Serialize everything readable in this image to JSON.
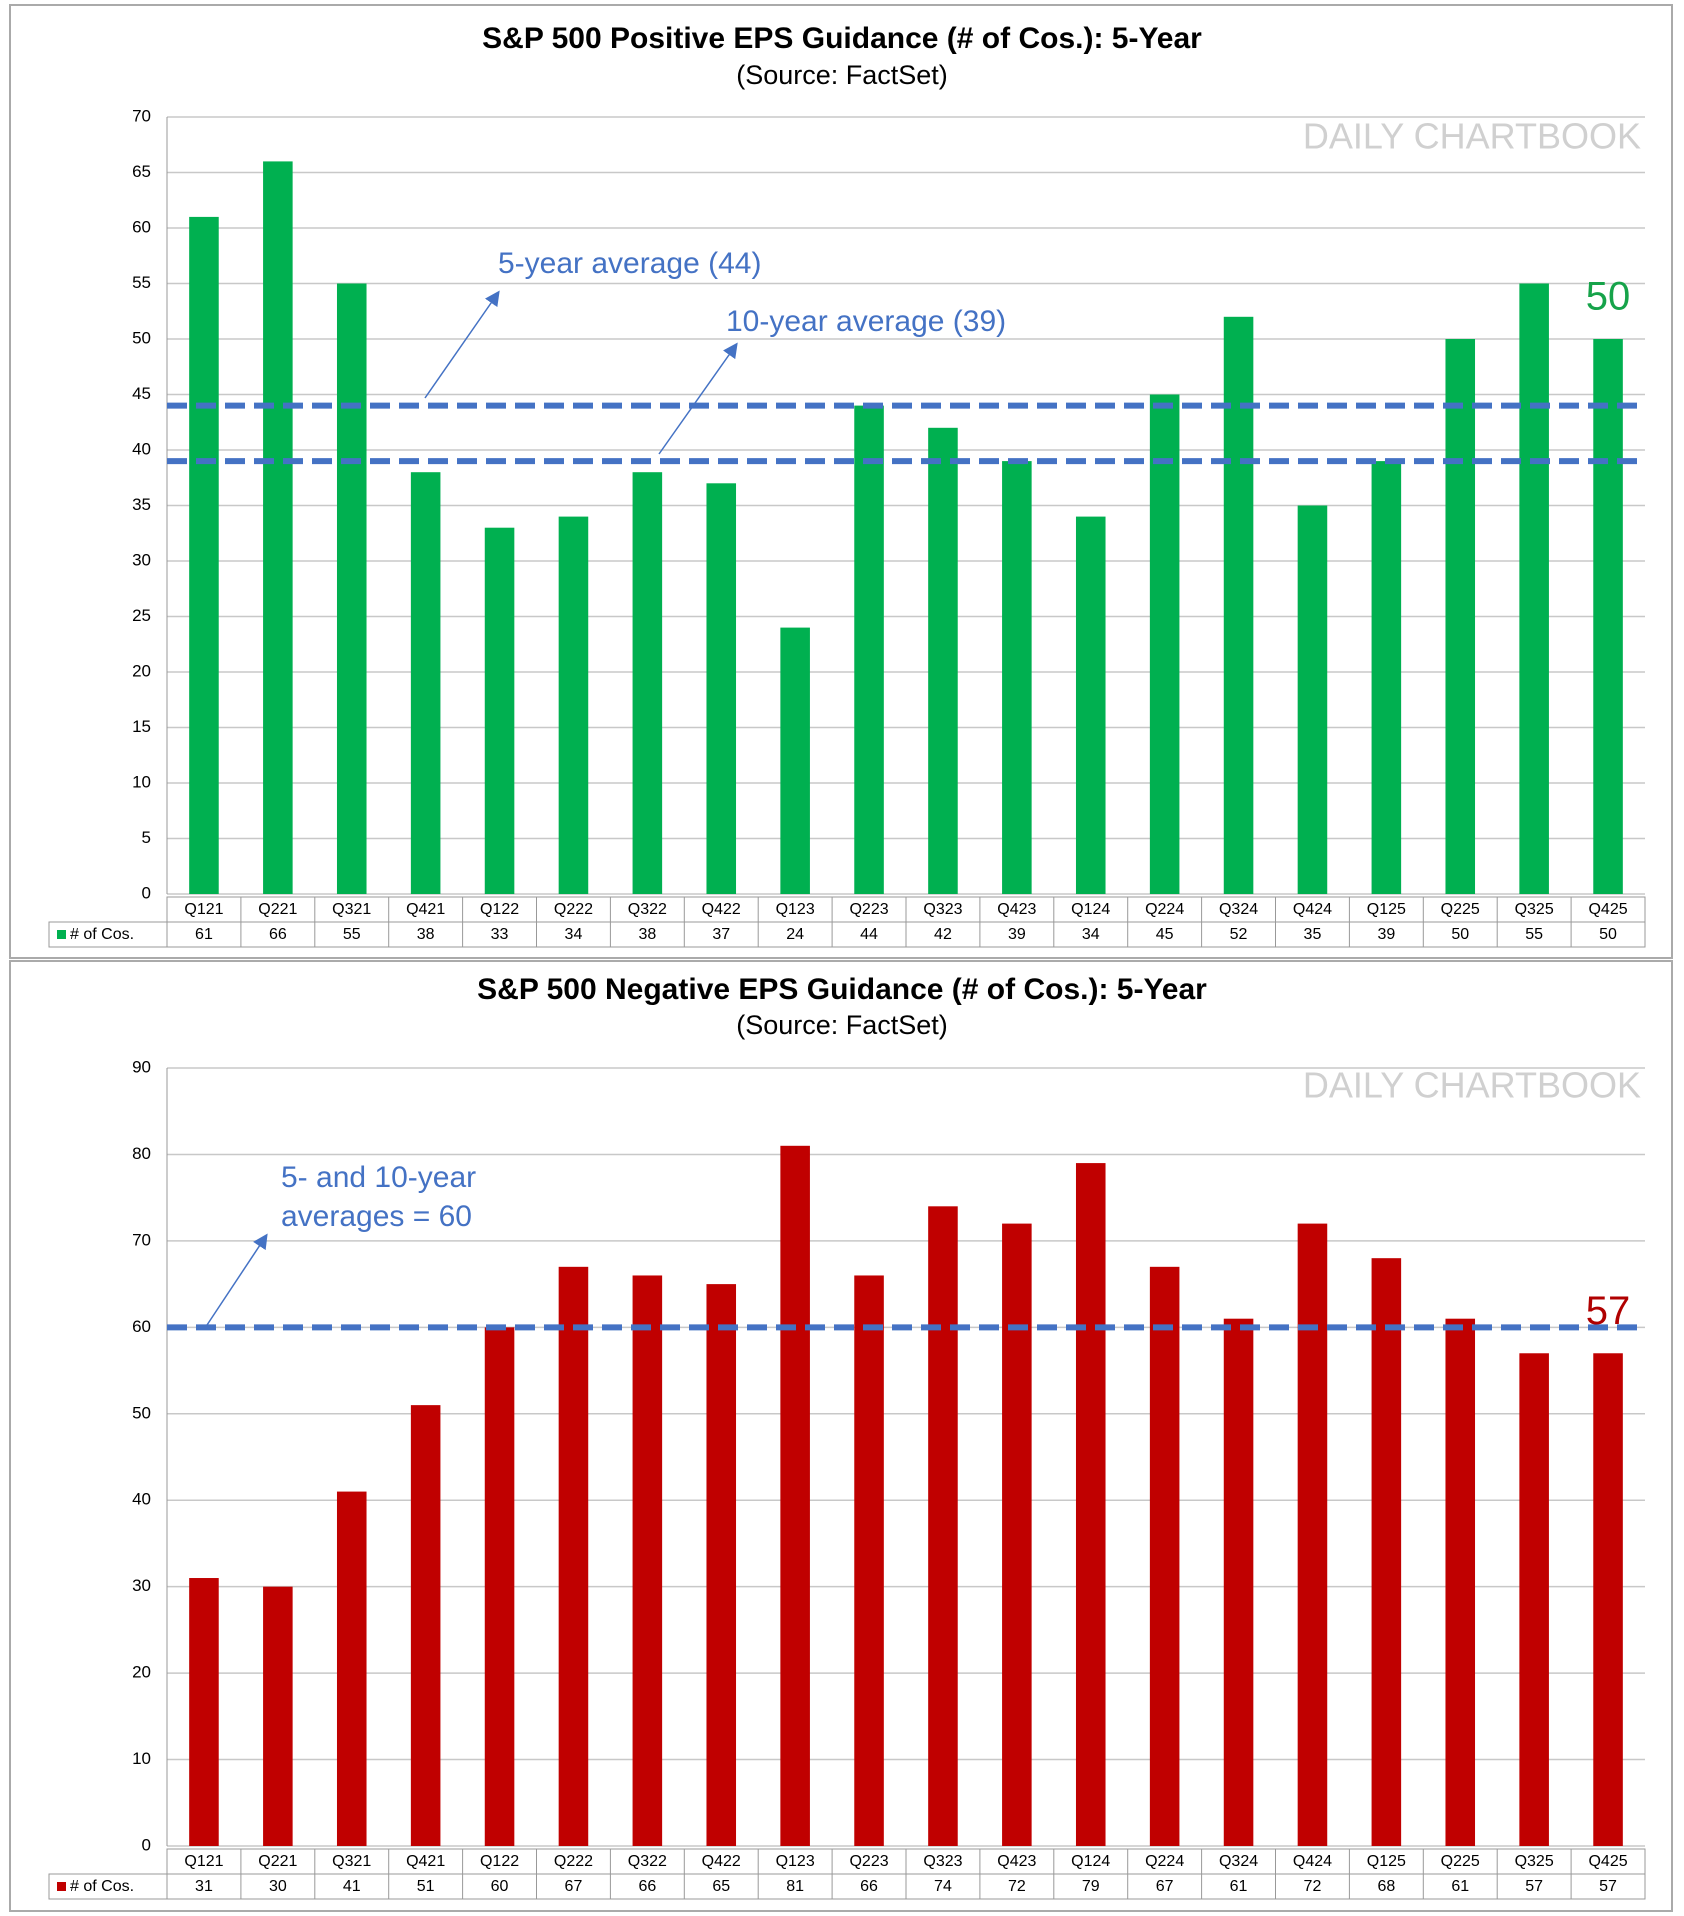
{
  "chart_data": [
    {
      "type": "bar",
      "title": "S&P 500 Positive EPS Guidance (# of Cos.): 5-Year",
      "subtitle": "(Source: FactSet)",
      "watermark": "DAILY CHARTBOOK",
      "categories": [
        "Q121",
        "Q221",
        "Q321",
        "Q421",
        "Q122",
        "Q222",
        "Q322",
        "Q422",
        "Q123",
        "Q223",
        "Q323",
        "Q423",
        "Q124",
        "Q224",
        "Q324",
        "Q424",
        "Q125",
        "Q225",
        "Q325",
        "Q425"
      ],
      "series": [
        {
          "name": "# of Cos.",
          "color": "#00b050",
          "values": [
            61,
            66,
            55,
            38,
            33,
            34,
            38,
            37,
            24,
            44,
            42,
            39,
            34,
            45,
            52,
            35,
            39,
            50,
            55,
            50
          ]
        }
      ],
      "ylim": [
        0,
        70
      ],
      "yticks": [
        0,
        5,
        10,
        15,
        20,
        25,
        30,
        35,
        40,
        45,
        50,
        55,
        60,
        65,
        70
      ],
      "grid": true,
      "reference_lines": [
        {
          "value": 44,
          "label": "5-year average (44)"
        },
        {
          "value": 39,
          "label": "10-year average (39)"
        }
      ],
      "callout_color": "#16a34a"
    },
    {
      "type": "bar",
      "title": "S&P 500 Negative EPS Guidance (# of Cos.): 5-Year",
      "subtitle": "(Source: FactSet)",
      "watermark": "DAILY CHARTBOOK",
      "categories": [
        "Q121",
        "Q221",
        "Q321",
        "Q421",
        "Q122",
        "Q222",
        "Q322",
        "Q422",
        "Q123",
        "Q223",
        "Q323",
        "Q423",
        "Q124",
        "Q224",
        "Q324",
        "Q424",
        "Q125",
        "Q225",
        "Q325",
        "Q425"
      ],
      "series": [
        {
          "name": "# of Cos.",
          "color": "#c00000",
          "values": [
            31,
            30,
            41,
            51,
            60,
            67,
            66,
            65,
            81,
            66,
            74,
            72,
            79,
            67,
            61,
            72,
            68,
            61,
            57,
            57
          ]
        }
      ],
      "ylim": [
        0,
        90
      ],
      "yticks": [
        0,
        10,
        20,
        30,
        40,
        50,
        60,
        70,
        80,
        90
      ],
      "grid": true,
      "reference_lines": [
        {
          "value": 60,
          "label_lines": [
            "5- and 10-year",
            "averages = 60"
          ]
        }
      ],
      "callout_color": "#b00000"
    }
  ]
}
